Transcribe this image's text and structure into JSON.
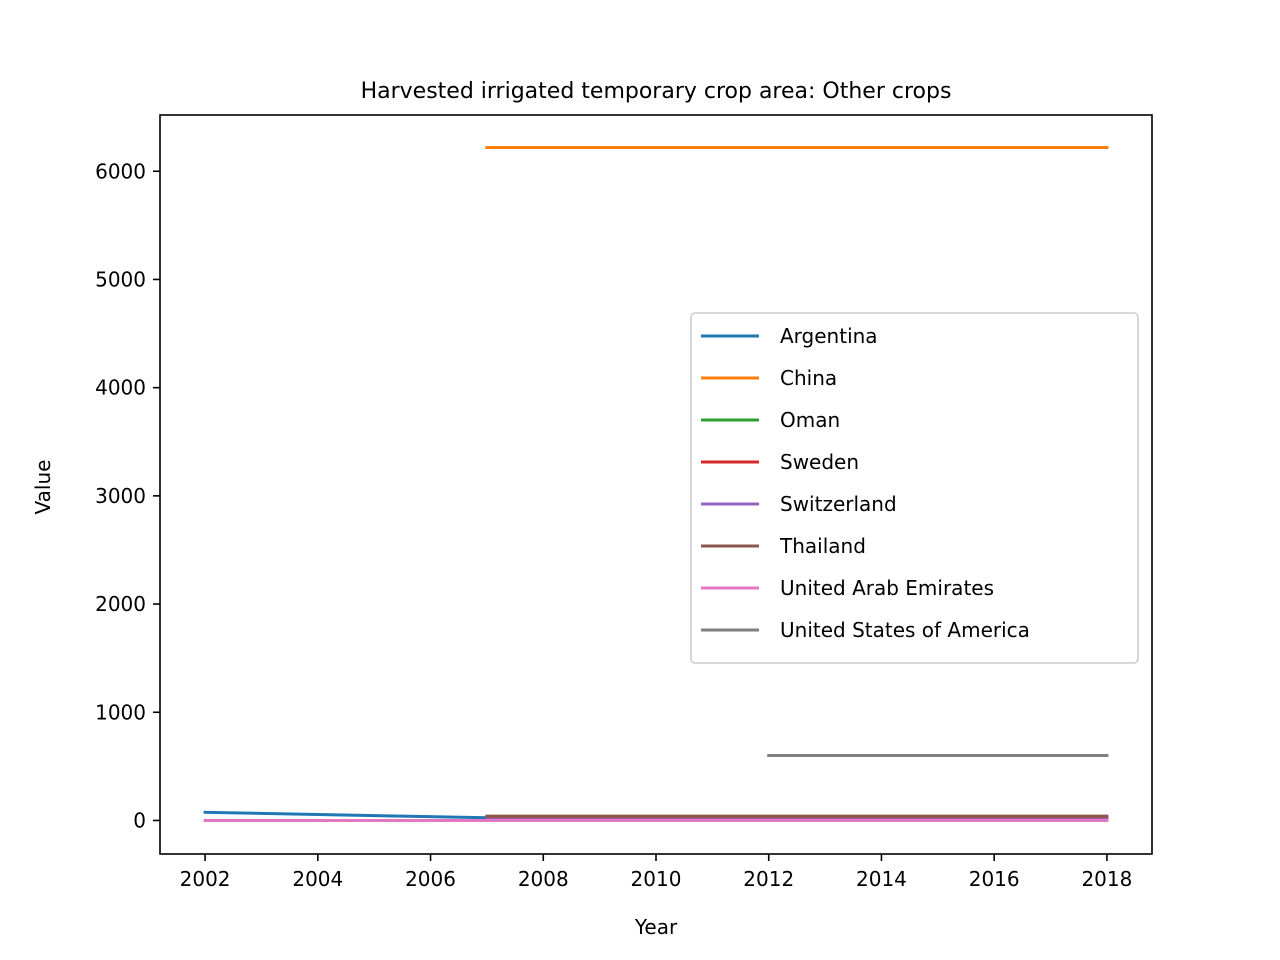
{
  "chart_data": {
    "type": "line",
    "title": "Harvested irrigated temporary crop area: Other crops",
    "xlabel": "Year",
    "ylabel": "Value",
    "xlim": [
      2001.2,
      2018.8
    ],
    "ylim": [
      -310,
      6520
    ],
    "xticks": [
      2002,
      2004,
      2006,
      2008,
      2010,
      2012,
      2014,
      2016,
      2018
    ],
    "yticks": [
      0,
      1000,
      2000,
      3000,
      4000,
      5000,
      6000
    ],
    "grid": false,
    "legend_position": "center-right",
    "series": [
      {
        "name": "Argentina",
        "color": "#1f77b4",
        "x": [
          2002,
          2007
        ],
        "y": [
          75,
          25
        ]
      },
      {
        "name": "China",
        "color": "#ff7f0e",
        "x": [
          2007,
          2018
        ],
        "y": [
          6220,
          6220
        ]
      },
      {
        "name": "Oman",
        "color": "#2ca02c",
        "x": [
          2007,
          2018
        ],
        "y": [
          20,
          20
        ]
      },
      {
        "name": "Sweden",
        "color": "#d62728",
        "x": [
          2007,
          2018
        ],
        "y": [
          30,
          30
        ]
      },
      {
        "name": "Switzerland",
        "color": "#9467bd",
        "x": [
          2007,
          2018
        ],
        "y": [
          10,
          10
        ]
      },
      {
        "name": "Thailand",
        "color": "#8c564b",
        "x": [
          2007,
          2018
        ],
        "y": [
          40,
          40
        ]
      },
      {
        "name": "United Arab Emirates",
        "color": "#e377c2",
        "x": [
          2002,
          2018
        ],
        "y": [
          0,
          0
        ]
      },
      {
        "name": "United States of America",
        "color": "#7f7f7f",
        "x": [
          2012,
          2018
        ],
        "y": [
          600,
          600
        ]
      }
    ]
  }
}
